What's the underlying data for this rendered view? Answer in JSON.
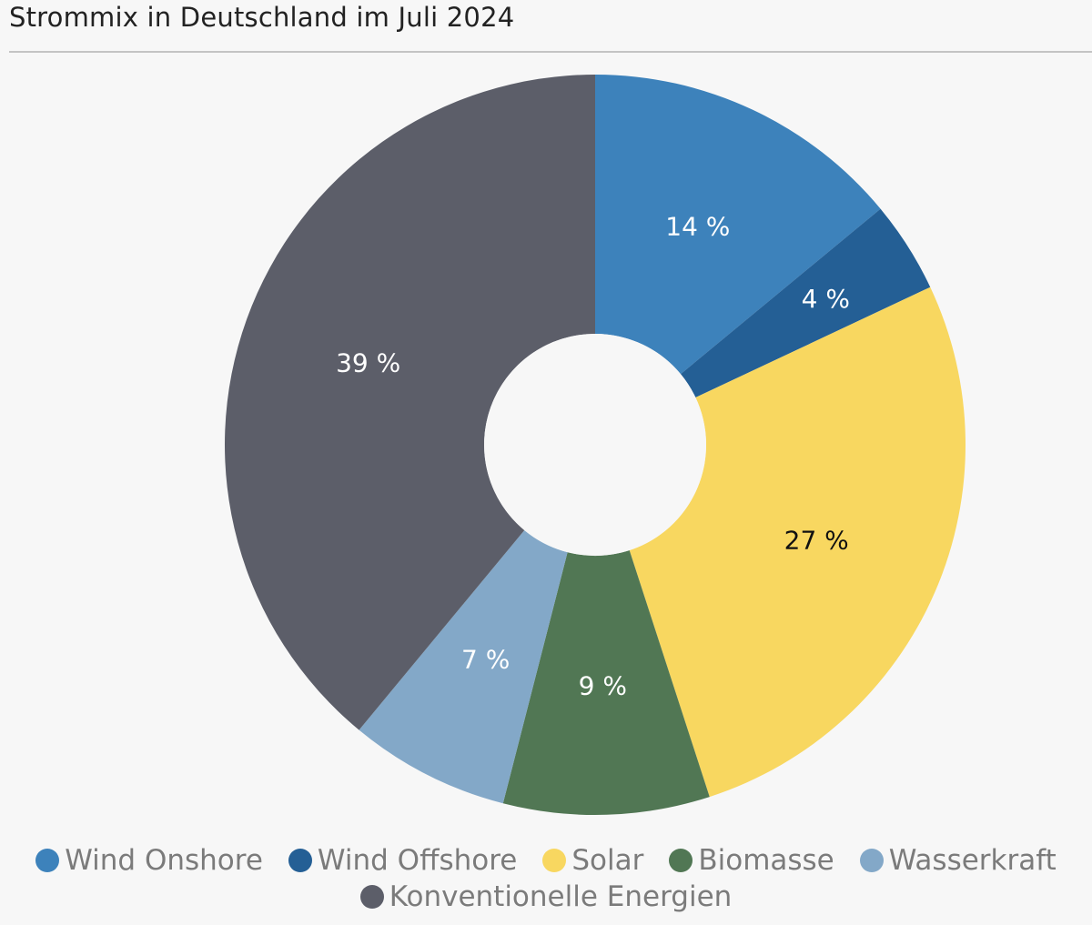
{
  "title": "Strommix in Deutschland im Juli 2024",
  "chart_data": {
    "type": "pie",
    "variant": "donut",
    "title": "Strommix in Deutschland im Juli 2024",
    "unit": "%",
    "start_angle_deg": 0,
    "direction": "clockwise",
    "legend_position": "bottom",
    "series": [
      {
        "name": "Wind Onshore",
        "value": 14,
        "label": "14 %",
        "color": "#3d82bb",
        "label_color": "#ffffff"
      },
      {
        "name": "Wind Offshore",
        "value": 4,
        "label": "4 %",
        "color": "#245f95",
        "label_color": "#ffffff"
      },
      {
        "name": "Solar",
        "value": 27,
        "label": "27 %",
        "color": "#f8d760",
        "label_color": "#111111"
      },
      {
        "name": "Biomasse",
        "value": 9,
        "label": "9 %",
        "color": "#517754",
        "label_color": "#ffffff"
      },
      {
        "name": "Wasserkraft",
        "value": 7,
        "label": "7 %",
        "color": "#83a8c8",
        "label_color": "#ffffff"
      },
      {
        "name": "Konventionelle Energien",
        "value": 39,
        "label": "39 %",
        "color": "#5c5e69",
        "label_color": "#ffffff"
      }
    ]
  }
}
